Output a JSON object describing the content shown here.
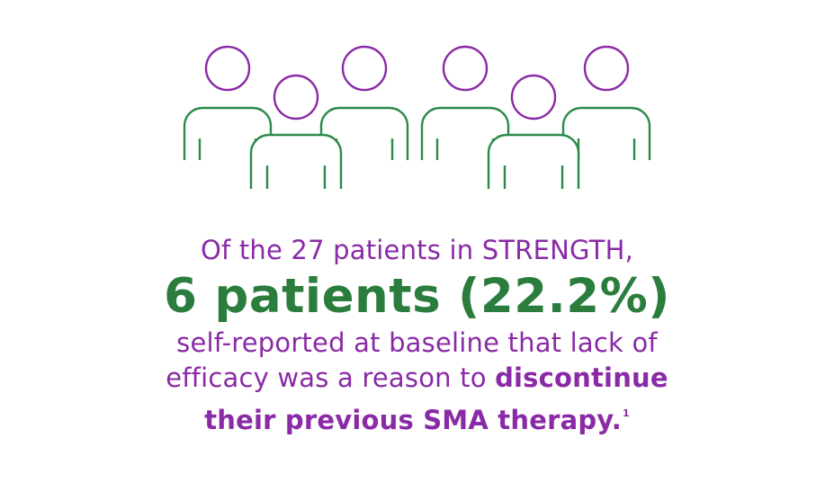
{
  "icon": "group-of-people-icon",
  "colors": {
    "purple": "#8a2aa6",
    "green": "#2b7d3d",
    "background": "#ffffff"
  },
  "text": {
    "intro": "Of the 27 patients in STRENGTH,",
    "highlight": "6 patients (22.2%)",
    "line3": "self-reported at baseline that lack of",
    "line4_plain": "efficacy was a reason to ",
    "line4_bold": "discontinue",
    "line5_bold": "their previous SMA therapy.",
    "footnote": "1"
  }
}
